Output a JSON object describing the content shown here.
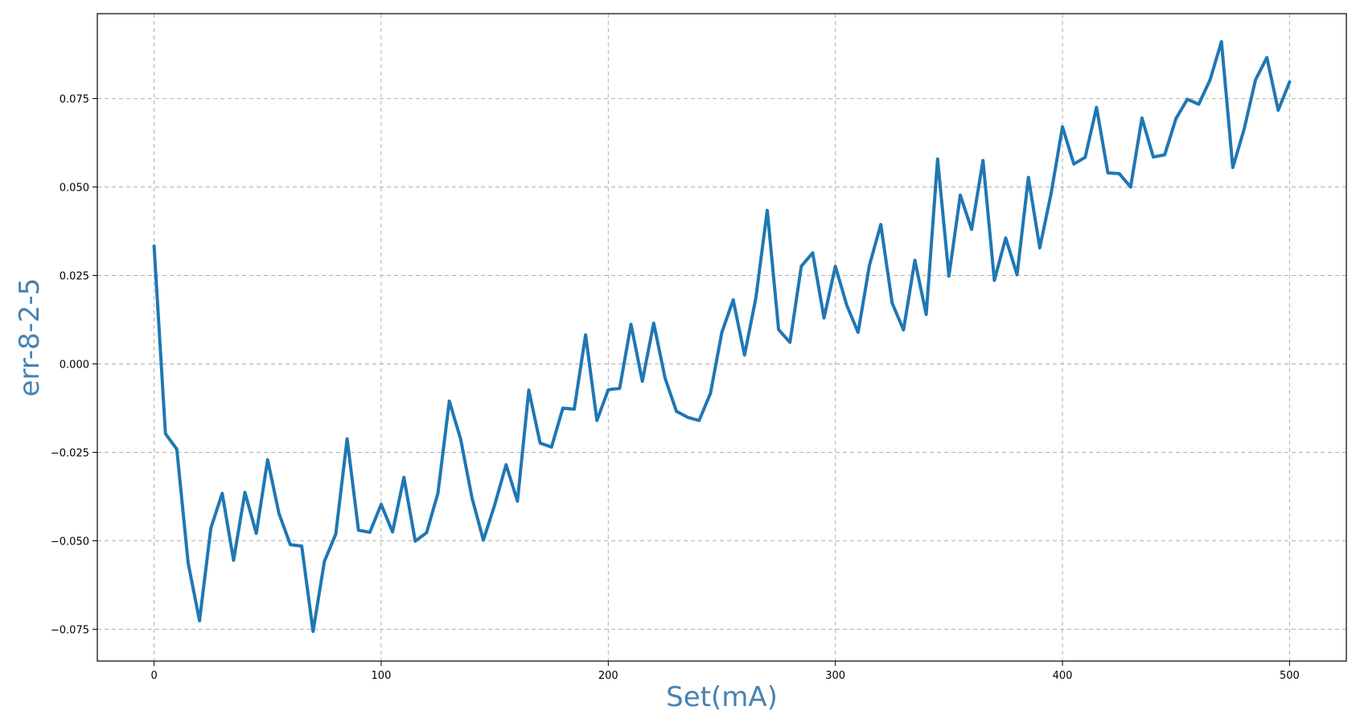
{
  "chart_data": {
    "type": "line",
    "xlabel": "Set(mA)",
    "ylabel": "err-8-2-5",
    "xlim": [
      -25,
      525
    ],
    "ylim": [
      -0.084,
      0.099
    ],
    "xticks": [
      0,
      100,
      200,
      300,
      400,
      500
    ],
    "xtick_labels": [
      "0",
      "100",
      "200",
      "300",
      "400",
      "500"
    ],
    "yticks": [
      -0.075,
      -0.05,
      -0.025,
      0.0,
      0.025,
      0.05,
      0.075
    ],
    "ytick_labels": [
      "−0.075",
      "−0.050",
      "−0.025",
      "0.000",
      "0.025",
      "0.050",
      "0.075"
    ],
    "grid": true,
    "colors": {
      "series": "#1f77b4",
      "axis_label": "#4682b4",
      "grid": "#b0b0b0"
    },
    "series": [
      {
        "x": [
          0,
          5,
          10,
          15,
          20,
          25,
          30,
          35,
          40,
          45,
          50,
          55,
          60,
          65,
          70,
          75,
          80,
          85,
          90,
          95,
          100,
          105,
          110,
          115,
          120,
          125,
          130,
          135,
          140,
          145,
          150,
          155,
          160,
          165,
          170,
          175,
          180,
          185,
          190,
          195,
          200,
          205,
          210,
          215,
          220,
          225,
          230,
          235,
          240,
          245,
          250,
          255,
          260,
          265,
          270,
          275,
          280,
          285,
          290,
          295,
          300,
          305,
          310,
          315,
          320,
          325,
          330,
          335,
          340,
          345,
          350,
          355,
          360,
          365,
          370,
          375,
          380,
          385,
          390,
          395,
          400,
          405,
          410,
          415,
          420,
          425,
          430,
          435,
          440,
          445,
          450,
          455,
          460,
          465,
          470,
          475,
          480,
          485,
          490,
          495,
          500
        ],
        "values": [
          0.0333,
          -0.0197,
          -0.0241,
          -0.0563,
          -0.0726,
          -0.0464,
          -0.0366,
          -0.0555,
          -0.0363,
          -0.0479,
          -0.0271,
          -0.0423,
          -0.0511,
          -0.0515,
          -0.0756,
          -0.0558,
          -0.0481,
          -0.0212,
          -0.047,
          -0.0476,
          -0.0397,
          -0.0475,
          -0.0321,
          -0.0501,
          -0.0477,
          -0.0365,
          -0.0105,
          -0.0213,
          -0.0379,
          -0.0498,
          -0.0398,
          -0.0285,
          -0.0388,
          -0.0074,
          -0.0224,
          -0.0235,
          -0.0125,
          -0.0128,
          0.0082,
          -0.016,
          -0.0073,
          -0.0069,
          0.0112,
          -0.0049,
          0.0115,
          -0.004,
          -0.0134,
          -0.0151,
          -0.016,
          -0.0083,
          0.0089,
          0.0181,
          0.0025,
          0.0187,
          0.0434,
          0.0097,
          0.0061,
          0.0276,
          0.0314,
          0.013,
          0.0276,
          0.0166,
          0.0089,
          0.0279,
          0.0394,
          0.0172,
          0.0096,
          0.0293,
          0.014,
          0.0579,
          0.0248,
          0.0477,
          0.038,
          0.0575,
          0.0236,
          0.0356,
          0.0252,
          0.0527,
          0.0328,
          0.0482,
          0.067,
          0.0565,
          0.0584,
          0.0725,
          0.054,
          0.0538,
          0.05,
          0.0695,
          0.0585,
          0.0591,
          0.0694,
          0.0748,
          0.0734,
          0.0803,
          0.0911,
          0.0555,
          0.0664,
          0.0803,
          0.0866,
          0.0717,
          0.0797
        ]
      }
    ]
  }
}
